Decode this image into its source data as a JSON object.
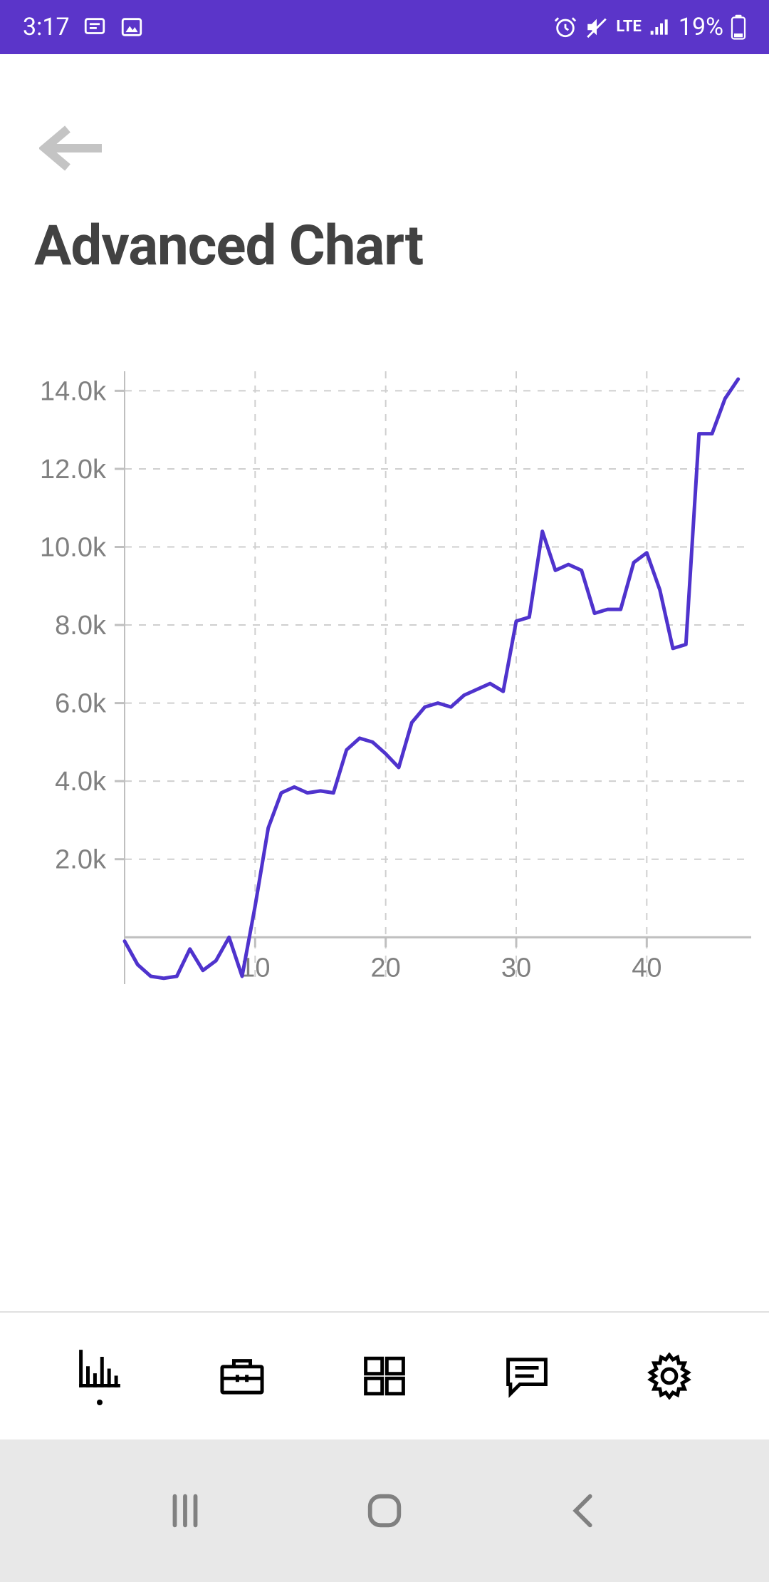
{
  "status": {
    "time": "3:17",
    "battery_pct": "19%",
    "network": "LTE",
    "bg_color": "#5b35c9",
    "text_color": "#ffffff"
  },
  "header": {
    "title": "Advanced Chart",
    "title_color": "#424242",
    "title_fontsize": 78,
    "back_icon_color": "#b0b0b0"
  },
  "chart": {
    "type": "line",
    "line_color": "#4f33cd",
    "line_width": 5,
    "grid_color": "#cfcfcf",
    "axis_color": "#bfbfbf",
    "tick_font_color": "#808080",
    "tick_fontsize": 38,
    "background_color": "#ffffff",
    "xlim": [
      0,
      48
    ],
    "ylim": [
      -1200,
      14500
    ],
    "x_ticks": [
      10,
      20,
      30,
      40
    ],
    "y_ticks": [
      2000,
      4000,
      6000,
      8000,
      10000,
      12000,
      14000
    ],
    "y_tick_labels": [
      "2.0k",
      "4.0k",
      "6.0k",
      "8.0k",
      "10.0k",
      "12.0k",
      "14.0k"
    ],
    "x_vgrid": [
      10,
      20,
      30,
      40
    ],
    "x_values": [
      0,
      1,
      2,
      3,
      4,
      5,
      6,
      7,
      8,
      9,
      10,
      11,
      12,
      13,
      14,
      15,
      16,
      17,
      18,
      19,
      20,
      21,
      22,
      23,
      24,
      25,
      26,
      27,
      28,
      29,
      30,
      31,
      32,
      33,
      34,
      35,
      36,
      37,
      38,
      39,
      40,
      41,
      42,
      43,
      44,
      45,
      46,
      47
    ],
    "y_values": [
      -100,
      -700,
      -1000,
      -1050,
      -1000,
      -300,
      -850,
      -600,
      0,
      -1000,
      800,
      2800,
      3700,
      3850,
      3700,
      3750,
      3700,
      4800,
      5100,
      5000,
      4700,
      4350,
      5500,
      5900,
      6000,
      5900,
      6200,
      6350,
      6500,
      6300,
      8100,
      8200,
      10400,
      9400,
      9550,
      9400,
      8300,
      8400,
      8400,
      9600,
      9850,
      8900,
      7400,
      7500,
      12900,
      12900,
      13800,
      14300
    ]
  },
  "tabs": {
    "items": [
      {
        "id": "charts",
        "active": true
      },
      {
        "id": "portfolio",
        "active": false
      },
      {
        "id": "grid",
        "active": false
      },
      {
        "id": "messages",
        "active": false
      },
      {
        "id": "settings",
        "active": false
      }
    ],
    "icon_color": "#000000",
    "border_color": "#e0e0e0"
  },
  "sysnav": {
    "bg_color": "#e8e8e8",
    "icon_color": "#808080"
  }
}
